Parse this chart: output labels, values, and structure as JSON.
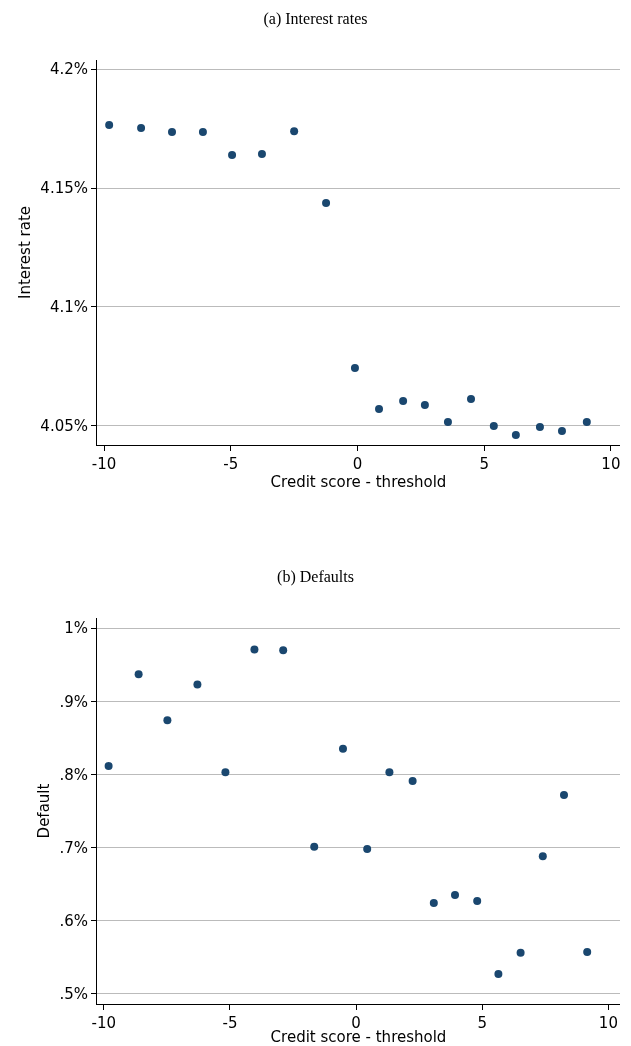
{
  "chart_data": [
    {
      "type": "scatter",
      "title": "(a) Interest rates",
      "xlabel": "Credit score - threshold",
      "ylabel": "Interest rate",
      "marker": "circle",
      "grid": "y",
      "xlim": [
        -10.28,
        10.36
      ],
      "xticks": [
        -10,
        -5,
        0,
        5,
        10
      ],
      "ylim": [
        4.042,
        4.2038
      ],
      "yticks": [
        {
          "value": 4.05,
          "label": "4.05%"
        },
        {
          "value": 4.1,
          "label": "4.1%"
        },
        {
          "value": 4.15,
          "label": "4.15%"
        },
        {
          "value": 4.2,
          "label": "4.2%"
        }
      ],
      "series": [
        {
          "color": "#1a476f",
          "x": [
            -9.8,
            -8.54,
            -7.32,
            -6.1,
            -4.95,
            -3.77,
            -2.5,
            -1.24,
            -0.1,
            0.85,
            1.8,
            2.66,
            3.57,
            4.48,
            5.38,
            6.25,
            7.2,
            8.07,
            9.05
          ],
          "values": [
            4.1765,
            4.1752,
            4.1735,
            4.1735,
            4.1639,
            4.1643,
            4.1739,
            4.1437,
            4.0744,
            4.0571,
            4.0605,
            4.0588,
            4.0517,
            4.0613,
            4.05,
            4.0462,
            4.0496,
            4.0479,
            4.0517
          ]
        }
      ]
    },
    {
      "type": "scatter",
      "title": "(b) Defaults",
      "xlabel": "Credit score - threshold",
      "ylabel": "Default",
      "marker": "circle",
      "grid": "y",
      "xlim": [
        -10.27,
        10.46
      ],
      "xticks": [
        -10,
        -5,
        0,
        5,
        10
      ],
      "ylim": [
        0.486,
        1.014
      ],
      "yticks": [
        {
          "value": 0.5,
          "label": ".5%"
        },
        {
          "value": 0.6,
          "label": ".6%"
        },
        {
          "value": 0.7,
          "label": ".7%"
        },
        {
          "value": 0.8,
          "label": ".8%"
        },
        {
          "value": 0.9,
          "label": ".9%"
        },
        {
          "value": 1,
          "label": "1%"
        }
      ],
      "series": [
        {
          "color": "#1a476f",
          "x": [
            -9.81,
            -8.62,
            -7.48,
            -6.29,
            -5.18,
            -4.03,
            -2.89,
            -1.66,
            -0.52,
            0.44,
            1.32,
            2.24,
            3.08,
            3.92,
            4.8,
            5.64,
            6.52,
            7.4,
            8.24,
            9.16
          ],
          "values": [
            0.8115,
            0.937,
            0.874,
            0.923,
            0.803,
            0.971,
            0.97,
            0.701,
            0.835,
            0.698,
            0.803,
            0.791,
            0.624,
            0.635,
            0.627,
            0.527,
            0.556,
            0.688,
            0.772,
            0.557
          ]
        }
      ]
    }
  ]
}
